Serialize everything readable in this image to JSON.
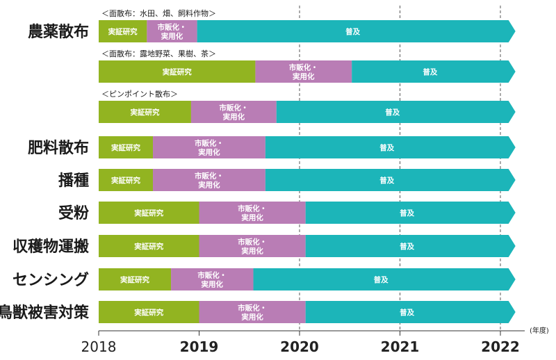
{
  "chart_data": {
    "type": "bar",
    "orientation": "horizontal-gantt",
    "x_unit": "(年度)",
    "x_ticks": [
      "2018",
      "2019",
      "2020",
      "2021",
      "2022"
    ],
    "x_range": [
      2018,
      2022.15
    ],
    "grid": "dashed vertical at 2020, 2021, 2022",
    "phases": [
      {
        "name": "実証研究",
        "label_lines": [
          "実証研究"
        ],
        "color": "#92b421"
      },
      {
        "name": "市販化・実用化",
        "label_lines": [
          "市販化・",
          "実用化"
        ],
        "color": "#b97db5"
      },
      {
        "name": "普及",
        "label_lines": [
          "普及"
        ],
        "color": "#1cb5b9"
      }
    ],
    "rows": [
      {
        "category": "農薬散布",
        "sublabel": "＜面散布：水田、畑、飼料作物＞",
        "starts": [
          2018.0,
          2018.48,
          2018.98
        ],
        "end": 2022.15
      },
      {
        "category": "",
        "sublabel": "＜面散布：露地野菜、果樹、茶＞",
        "starts": [
          2018.0,
          2019.56,
          2020.52
        ],
        "end": 2022.15
      },
      {
        "category": "",
        "sublabel": "＜ピンポイント散布＞",
        "starts": [
          2018.0,
          2018.92,
          2019.77
        ],
        "end": 2022.15
      },
      {
        "category": "肥料散布",
        "sublabel": "",
        "starts": [
          2018.0,
          2018.54,
          2019.66
        ],
        "end": 2022.15
      },
      {
        "category": "播種",
        "sublabel": "",
        "starts": [
          2018.0,
          2018.54,
          2019.66
        ],
        "end": 2022.15
      },
      {
        "category": "受粉",
        "sublabel": "",
        "starts": [
          2018.0,
          2019.0,
          2020.06
        ],
        "end": 2022.15
      },
      {
        "category": "収穫物運搬",
        "sublabel": "",
        "starts": [
          2018.0,
          2019.0,
          2020.06
        ],
        "end": 2022.15
      },
      {
        "category": "センシング",
        "sublabel": "",
        "starts": [
          2018.0,
          2018.72,
          2019.54
        ],
        "end": 2022.15
      },
      {
        "category": "鳥獣被害対策",
        "sublabel": "",
        "starts": [
          2018.0,
          2019.0,
          2020.06
        ],
        "end": 2022.15
      }
    ]
  }
}
